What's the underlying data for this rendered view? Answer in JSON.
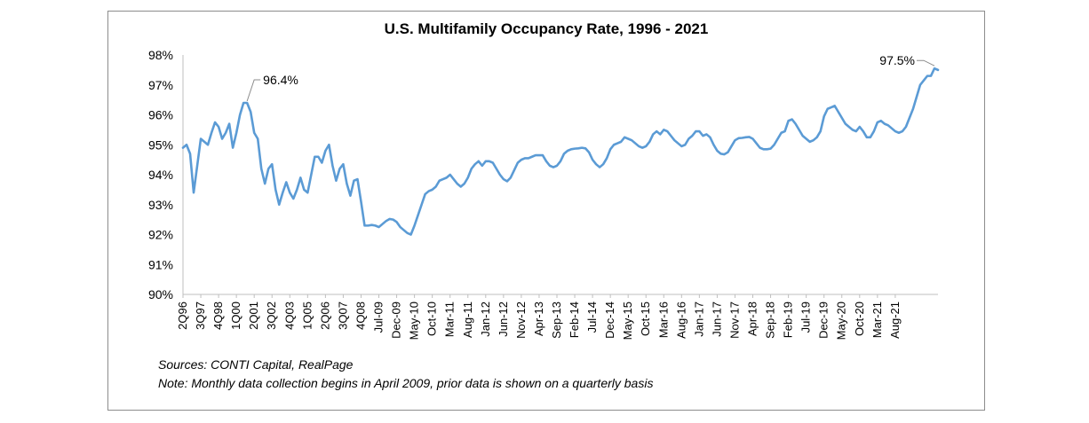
{
  "chart_data": {
    "type": "line",
    "title": "U.S. Multifamily Occupancy Rate, 1996 - 2021",
    "ylim": [
      90,
      98
    ],
    "y_ticks": [
      "90%",
      "91%",
      "92%",
      "93%",
      "94%",
      "95%",
      "96%",
      "97%",
      "98%"
    ],
    "x_tick_labels": [
      "2Q96",
      "3Q97",
      "4Q98",
      "1Q00",
      "2Q01",
      "3Q02",
      "4Q03",
      "1Q05",
      "2Q06",
      "3Q07",
      "4Q08",
      "Jul-09",
      "Dec-09",
      "May-10",
      "Oct-10",
      "Mar-11",
      "Aug-11",
      "Jan-12",
      "Jun-12",
      "Nov-12",
      "Apr-13",
      "Sep-13",
      "Feb-14",
      "Jul-14",
      "Dec-14",
      "May-15",
      "Oct-15",
      "Mar-16",
      "Aug-16",
      "Jan-17",
      "Jun-17",
      "Nov-17",
      "Apr-18",
      "Sep-18",
      "Feb-19",
      "Jul-19",
      "Dec-19",
      "May-20",
      "Oct-20",
      "Mar-21",
      "Aug-21"
    ],
    "grid": false,
    "line_color": "#5b9bd5",
    "series": [
      {
        "points": [
          [
            "2Q96",
            94.9
          ],
          [
            "3Q96",
            95.0
          ],
          [
            "4Q96",
            94.7
          ],
          [
            "1Q97",
            93.4
          ],
          [
            "2Q97",
            94.3
          ],
          [
            "3Q97",
            95.2
          ],
          [
            "4Q97",
            95.1
          ],
          [
            "1Q98",
            95.0
          ],
          [
            "2Q98",
            95.4
          ],
          [
            "3Q98",
            95.75
          ],
          [
            "4Q98",
            95.6
          ],
          [
            "1Q99",
            95.2
          ],
          [
            "2Q99",
            95.4
          ],
          [
            "3Q99",
            95.7
          ],
          [
            "4Q99",
            94.9
          ],
          [
            "1Q00",
            95.4
          ],
          [
            "2Q00",
            96.0
          ],
          [
            "3Q00",
            96.4
          ],
          [
            "4Q00",
            96.4
          ],
          [
            "1Q01",
            96.1
          ],
          [
            "2Q01",
            95.4
          ],
          [
            "3Q01",
            95.2
          ],
          [
            "4Q01",
            94.2
          ],
          [
            "1Q02",
            93.7
          ],
          [
            "2Q02",
            94.2
          ],
          [
            "3Q02",
            94.35
          ],
          [
            "4Q02",
            93.5
          ],
          [
            "1Q03",
            93.0
          ],
          [
            "2Q03",
            93.4
          ],
          [
            "3Q03",
            93.75
          ],
          [
            "4Q03",
            93.4
          ],
          [
            "1Q04",
            93.2
          ],
          [
            "2Q04",
            93.5
          ],
          [
            "3Q04",
            93.9
          ],
          [
            "4Q04",
            93.5
          ],
          [
            "1Q05",
            93.4
          ],
          [
            "2Q05",
            94.0
          ],
          [
            "3Q05",
            94.6
          ],
          [
            "4Q05",
            94.6
          ],
          [
            "1Q06",
            94.4
          ],
          [
            "2Q06",
            94.8
          ],
          [
            "3Q06",
            95.0
          ],
          [
            "4Q06",
            94.3
          ],
          [
            "1Q07",
            93.8
          ],
          [
            "2Q07",
            94.2
          ],
          [
            "3Q07",
            94.35
          ],
          [
            "4Q07",
            93.7
          ],
          [
            "1Q08",
            93.3
          ],
          [
            "2Q08",
            93.8
          ],
          [
            "3Q08",
            93.85
          ],
          [
            "4Q08",
            93.1
          ],
          [
            "1Q09",
            92.3
          ],
          [
            "Apr-09",
            92.3
          ],
          [
            "May-09",
            92.32
          ],
          [
            "Jun-09",
            92.3
          ],
          [
            "Jul-09",
            92.25
          ],
          [
            "Aug-09",
            92.35
          ],
          [
            "Sep-09",
            92.45
          ],
          [
            "Oct-09",
            92.52
          ],
          [
            "Nov-09",
            92.5
          ],
          [
            "Dec-09",
            92.42
          ],
          [
            "Jan-10",
            92.25
          ],
          [
            "Feb-10",
            92.15
          ],
          [
            "Mar-10",
            92.05
          ],
          [
            "Apr-10",
            92.0
          ],
          [
            "May-10",
            92.3
          ],
          [
            "Jun-10",
            92.65
          ],
          [
            "Jul-10",
            93.0
          ],
          [
            "Aug-10",
            93.35
          ],
          [
            "Sep-10",
            93.45
          ],
          [
            "Oct-10",
            93.5
          ],
          [
            "Nov-10",
            93.6
          ],
          [
            "Dec-10",
            93.8
          ],
          [
            "Jan-11",
            93.85
          ],
          [
            "Feb-11",
            93.9
          ],
          [
            "Mar-11",
            94.0
          ],
          [
            "Apr-11",
            93.85
          ],
          [
            "May-11",
            93.7
          ],
          [
            "Jun-11",
            93.6
          ],
          [
            "Jul-11",
            93.7
          ],
          [
            "Aug-11",
            93.9
          ],
          [
            "Sep-11",
            94.2
          ],
          [
            "Oct-11",
            94.35
          ],
          [
            "Nov-11",
            94.45
          ],
          [
            "Dec-11",
            94.3
          ],
          [
            "Jan-12",
            94.45
          ],
          [
            "Feb-12",
            94.45
          ],
          [
            "Mar-12",
            94.4
          ],
          [
            "Apr-12",
            94.2
          ],
          [
            "May-12",
            94.0
          ],
          [
            "Jun-12",
            93.85
          ],
          [
            "Jul-12",
            93.78
          ],
          [
            "Aug-12",
            93.9
          ],
          [
            "Sep-12",
            94.15
          ],
          [
            "Oct-12",
            94.4
          ],
          [
            "Nov-12",
            94.5
          ],
          [
            "Dec-12",
            94.55
          ],
          [
            "Jan-13",
            94.55
          ],
          [
            "Feb-13",
            94.6
          ],
          [
            "Mar-13",
            94.65
          ],
          [
            "Apr-13",
            94.65
          ],
          [
            "May-13",
            94.65
          ],
          [
            "Jun-13",
            94.45
          ],
          [
            "Jul-13",
            94.3
          ],
          [
            "Aug-13",
            94.25
          ],
          [
            "Sep-13",
            94.3
          ],
          [
            "Oct-13",
            94.45
          ],
          [
            "Nov-13",
            94.7
          ],
          [
            "Dec-13",
            94.8
          ],
          [
            "Jan-14",
            94.85
          ],
          [
            "Feb-14",
            94.87
          ],
          [
            "Mar-14",
            94.88
          ],
          [
            "Apr-14",
            94.9
          ],
          [
            "May-14",
            94.88
          ],
          [
            "Jun-14",
            94.75
          ],
          [
            "Jul-14",
            94.5
          ],
          [
            "Aug-14",
            94.35
          ],
          [
            "Sep-14",
            94.25
          ],
          [
            "Oct-14",
            94.35
          ],
          [
            "Nov-14",
            94.55
          ],
          [
            "Dec-14",
            94.85
          ],
          [
            "Jan-15",
            95.0
          ],
          [
            "Feb-15",
            95.05
          ],
          [
            "Mar-15",
            95.1
          ],
          [
            "Apr-15",
            95.25
          ],
          [
            "May-15",
            95.2
          ],
          [
            "Jun-15",
            95.15
          ],
          [
            "Jul-15",
            95.05
          ],
          [
            "Aug-15",
            94.95
          ],
          [
            "Sep-15",
            94.9
          ],
          [
            "Oct-15",
            94.95
          ],
          [
            "Nov-15",
            95.1
          ],
          [
            "Dec-15",
            95.35
          ],
          [
            "Jan-16",
            95.45
          ],
          [
            "Feb-16",
            95.35
          ],
          [
            "Mar-16",
            95.5
          ],
          [
            "Apr-16",
            95.45
          ],
          [
            "May-16",
            95.3
          ],
          [
            "Jun-16",
            95.15
          ],
          [
            "Jul-16",
            95.05
          ],
          [
            "Aug-16",
            94.95
          ],
          [
            "Sep-16",
            95.0
          ],
          [
            "Oct-16",
            95.2
          ],
          [
            "Nov-16",
            95.3
          ],
          [
            "Dec-16",
            95.45
          ],
          [
            "Jan-17",
            95.45
          ],
          [
            "Feb-17",
            95.3
          ],
          [
            "Mar-17",
            95.35
          ],
          [
            "Apr-17",
            95.25
          ],
          [
            "May-17",
            95.0
          ],
          [
            "Jun-17",
            94.8
          ],
          [
            "Jul-17",
            94.7
          ],
          [
            "Aug-17",
            94.68
          ],
          [
            "Sep-17",
            94.75
          ],
          [
            "Oct-17",
            94.95
          ],
          [
            "Nov-17",
            95.15
          ],
          [
            "Dec-17",
            95.22
          ],
          [
            "Jan-18",
            95.23
          ],
          [
            "Feb-18",
            95.25
          ],
          [
            "Mar-18",
            95.26
          ],
          [
            "Apr-18",
            95.2
          ],
          [
            "May-18",
            95.05
          ],
          [
            "Jun-18",
            94.9
          ],
          [
            "Jul-18",
            94.85
          ],
          [
            "Aug-18",
            94.85
          ],
          [
            "Sep-18",
            94.87
          ],
          [
            "Oct-18",
            95.0
          ],
          [
            "Nov-18",
            95.2
          ],
          [
            "Dec-18",
            95.4
          ],
          [
            "Jan-19",
            95.45
          ],
          [
            "Feb-19",
            95.8
          ],
          [
            "Mar-19",
            95.85
          ],
          [
            "Apr-19",
            95.7
          ],
          [
            "May-19",
            95.5
          ],
          [
            "Jun-19",
            95.3
          ],
          [
            "Jul-19",
            95.2
          ],
          [
            "Aug-19",
            95.1
          ],
          [
            "Sep-19",
            95.15
          ],
          [
            "Oct-19",
            95.25
          ],
          [
            "Nov-19",
            95.45
          ],
          [
            "Dec-19",
            95.95
          ],
          [
            "Jan-20",
            96.2
          ],
          [
            "Feb-20",
            96.25
          ],
          [
            "Mar-20",
            96.3
          ],
          [
            "Apr-20",
            96.1
          ],
          [
            "May-20",
            95.9
          ],
          [
            "Jun-20",
            95.7
          ],
          [
            "Jul-20",
            95.6
          ],
          [
            "Aug-20",
            95.5
          ],
          [
            "Sep-20",
            95.45
          ],
          [
            "Oct-20",
            95.6
          ],
          [
            "Nov-20",
            95.45
          ],
          [
            "Dec-20",
            95.25
          ],
          [
            "Jan-21",
            95.25
          ],
          [
            "Feb-21",
            95.45
          ],
          [
            "Mar-21",
            95.75
          ],
          [
            "Apr-21",
            95.8
          ],
          [
            "May-21",
            95.7
          ],
          [
            "Jun-21",
            95.65
          ],
          [
            "Jul-21",
            95.55
          ],
          [
            "Aug-21",
            95.45
          ],
          [
            "Sep-21",
            95.4
          ],
          [
            "Oct-21",
            95.45
          ],
          [
            "Nov-21",
            95.6
          ],
          [
            "Dec-21",
            95.9
          ],
          [
            "Jan-22",
            96.2
          ],
          [
            "Feb-22",
            96.6
          ],
          [
            "Mar-22",
            97.0
          ],
          [
            "Apr-22",
            97.15
          ],
          [
            "May-22",
            97.3
          ],
          [
            "Jun-22",
            97.3
          ],
          [
            "Jul-22",
            97.55
          ],
          [
            "Aug-22",
            97.5
          ]
        ]
      }
    ],
    "annotations": [
      {
        "text": "96.4%",
        "x": "4Q00",
        "y": 96.4
      },
      {
        "text": "97.5%",
        "x": "Jul-22",
        "y": 97.55
      }
    ]
  },
  "notes": {
    "sources": "Sources: CONTI Capital, RealPage",
    "note": "Note: Monthly data collection begins in April 2009, prior data is shown on a quarterly basis"
  }
}
